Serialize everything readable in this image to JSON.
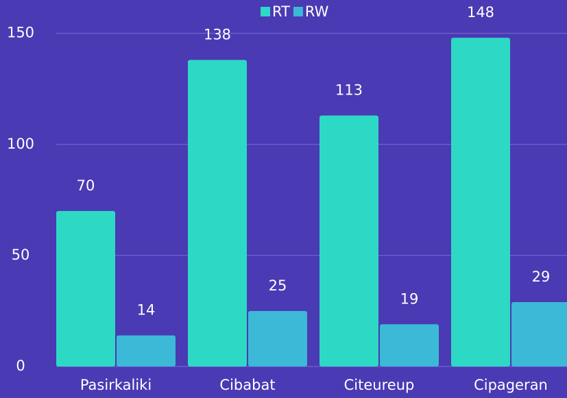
{
  "chart_data": {
    "type": "bar",
    "categories": [
      "Pasirkaliki",
      "Cibabat",
      "Citeureup",
      "Cipageran"
    ],
    "series": [
      {
        "name": "RT",
        "color": "#2dd9c5",
        "values": [
          70,
          138,
          113,
          148
        ]
      },
      {
        "name": "RW",
        "color": "#3cb9d7",
        "values": [
          14,
          25,
          19,
          29
        ]
      }
    ],
    "ylim": [
      0,
      165
    ],
    "yticks": [
      0,
      50,
      100,
      150
    ],
    "grid": true,
    "legend": "top"
  }
}
